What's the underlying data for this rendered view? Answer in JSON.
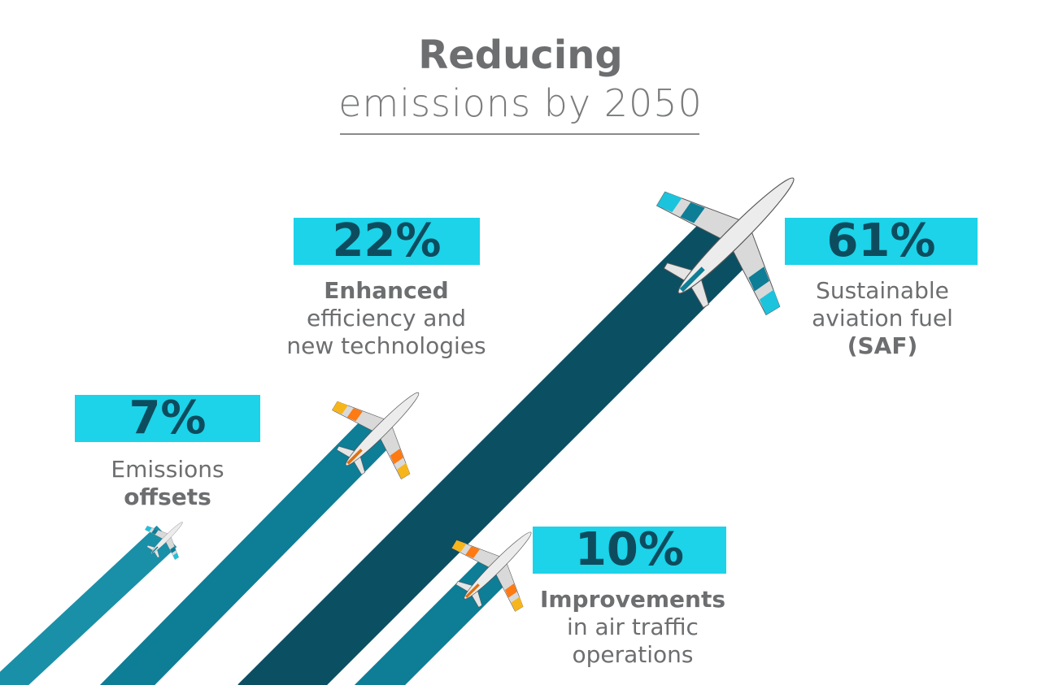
{
  "title": {
    "line1": "Reducing",
    "line2": "emissions by 2050"
  },
  "items": [
    {
      "percent": "7%",
      "lines": [
        "Emissions"
      ],
      "bold": "offsets"
    },
    {
      "percent": "22%",
      "bold": "Enhanced",
      "lines": [
        "efficiency and",
        "new technologies"
      ]
    },
    {
      "percent": "61%",
      "lines": [
        "Sustainable",
        "aviation fuel"
      ],
      "bold": "(SAF)"
    },
    {
      "percent": "10%",
      "bold": "Improvements",
      "lines": [
        "in air traffic",
        "operations"
      ]
    }
  ],
  "colors": {
    "box": "#1cd3e9",
    "percent_text": "#0d4c5e",
    "stripe_light": "#1a8fa8",
    "stripe_mid": "#0e7d96",
    "stripe_dark": "#0b4f63",
    "accent_orange": "#ff7a12",
    "accent_yellow": "#f7b51c"
  }
}
